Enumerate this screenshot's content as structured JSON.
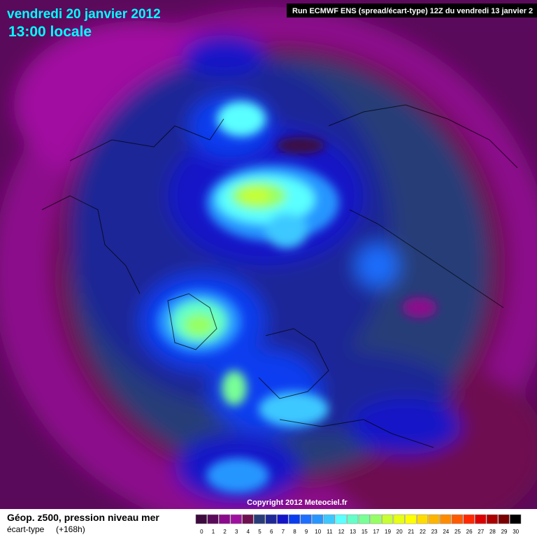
{
  "header": {
    "date": "vendredi 20 janvier 2012",
    "time": "13:00 locale",
    "run": "Run ECMWF ENS (spread/écart-type) 12Z du vendredi 13 janvier 2"
  },
  "copyright": "Copyright 2012 Meteociel.fr",
  "footer": {
    "field": "Géop. z500, pression niveau mer",
    "measure": "écart-type",
    "lead": "(+168h)"
  },
  "legend": {
    "labels": [
      0,
      1,
      2,
      3,
      4,
      5,
      6,
      7,
      8,
      9,
      10,
      11,
      12,
      13,
      15,
      17,
      19,
      20,
      21,
      22,
      23,
      24,
      25,
      26,
      27,
      28,
      29,
      30
    ],
    "colors": [
      "#3c0a3c",
      "#5a0a5a",
      "#8c0a8c",
      "#a010a0",
      "#6e1050",
      "#283c78",
      "#1e2896",
      "#1414c8",
      "#0a3cf0",
      "#1e6eff",
      "#2896ff",
      "#3cc8ff",
      "#5affff",
      "#64ffc8",
      "#78ff96",
      "#96ff64",
      "#c8ff32",
      "#e6ff14",
      "#ffff00",
      "#ffdc00",
      "#ffb400",
      "#ff8c00",
      "#ff5a00",
      "#ff2800",
      "#dc0000",
      "#aa0000",
      "#780000",
      "#000000"
    ]
  }
}
